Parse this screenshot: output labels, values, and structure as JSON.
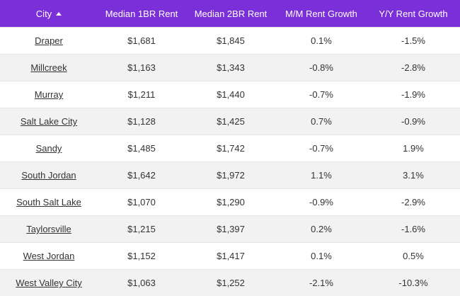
{
  "table": {
    "headers": [
      "City",
      "Median 1BR Rent",
      "Median 2BR Rent",
      "M/M Rent Growth",
      "Y/Y Rent Growth"
    ],
    "rows": [
      [
        "Draper",
        "$1,681",
        "$1,845",
        "0.1%",
        "-1.5%"
      ],
      [
        "Millcreek",
        "$1,163",
        "$1,343",
        "-0.8%",
        "-2.8%"
      ],
      [
        "Murray",
        "$1,211",
        "$1,440",
        "-0.7%",
        "-1.9%"
      ],
      [
        "Salt Lake City",
        "$1,128",
        "$1,425",
        "0.7%",
        "-0.9%"
      ],
      [
        "Sandy",
        "$1,485",
        "$1,742",
        "-0.7%",
        "1.9%"
      ],
      [
        "South Jordan",
        "$1,642",
        "$1,972",
        "1.1%",
        "3.1%"
      ],
      [
        "South Salt Lake",
        "$1,070",
        "$1,290",
        "-0.9%",
        "-2.9%"
      ],
      [
        "Taylorsville",
        "$1,215",
        "$1,397",
        "0.2%",
        "-1.6%"
      ],
      [
        "West Jordan",
        "$1,152",
        "$1,417",
        "0.1%",
        "0.5%"
      ],
      [
        "West Valley City",
        "$1,063",
        "$1,252",
        "-2.1%",
        "-10.3%"
      ]
    ]
  }
}
